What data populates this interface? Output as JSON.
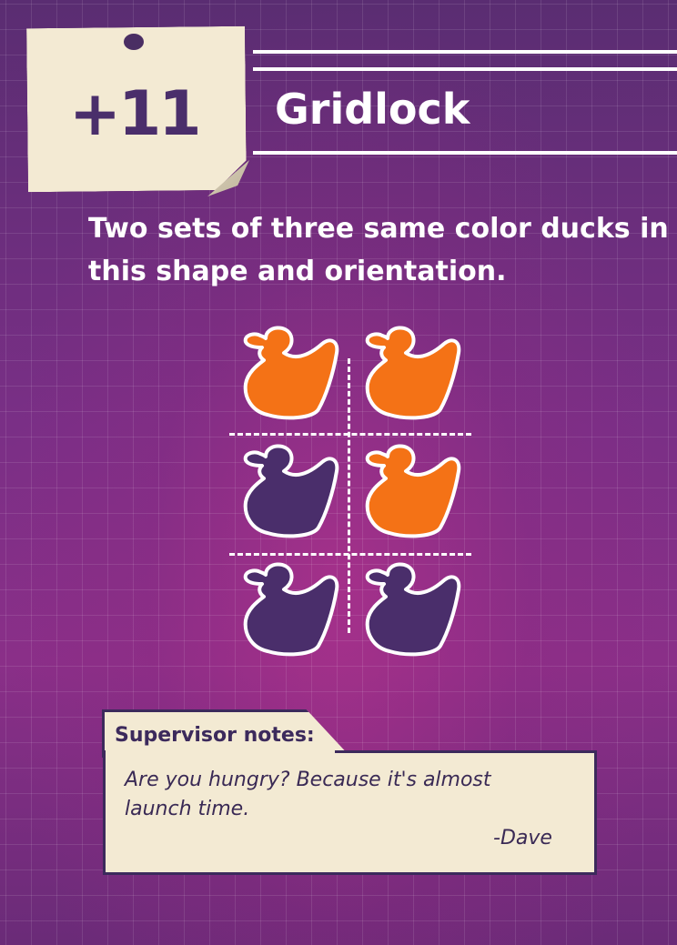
{
  "card": {
    "score": "+11",
    "title": "Gridlock",
    "description": "Two sets of three same color ducks in this shape and orientation."
  },
  "colors": {
    "orange_duck": "#f47216",
    "purple_duck": "#4a2e6b",
    "note_paper": "#f3ead3",
    "background": "#7a2f86"
  },
  "duck_grid": {
    "rows": [
      [
        "orange",
        "orange"
      ],
      [
        "purple",
        "orange"
      ],
      [
        "purple",
        "purple"
      ]
    ]
  },
  "supervisor": {
    "heading": "Supervisor notes:",
    "note": "Are you hungry? Because it's almost launch time.",
    "signature": "-Dave"
  }
}
